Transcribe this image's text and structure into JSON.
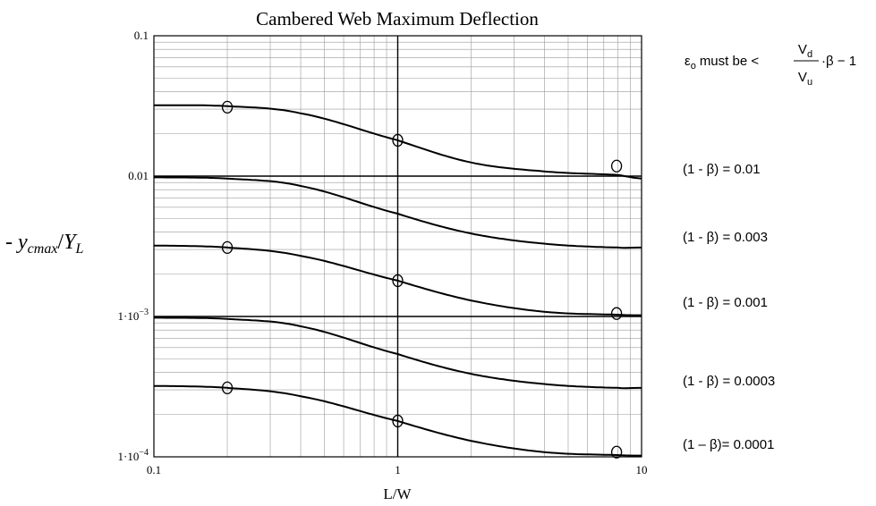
{
  "chart_data": {
    "type": "line",
    "title": "Cambered Web Maximum Deflection",
    "xlabel": "L/W",
    "ylabel": {
      "prefix": "- ",
      "var": "y",
      "var_sub": "cmax",
      "sep": "/",
      "denom": "Y",
      "denom_sub": "L"
    },
    "x_scale": "log",
    "y_scale": "log",
    "xlim": [
      0.1,
      10
    ],
    "ylim": [
      0.0001,
      0.1
    ],
    "x_ticks": [
      {
        "value": 0.1,
        "label": "0.1"
      },
      {
        "value": 1,
        "label": "1"
      },
      {
        "value": 10,
        "label": "10"
      }
    ],
    "y_ticks": [
      {
        "value": 0.1,
        "label": "0.1",
        "base": "",
        "exp": ""
      },
      {
        "value": 0.01,
        "label": "0.01",
        "base": "",
        "exp": ""
      },
      {
        "value": 0.001,
        "label": "",
        "base": "1·10",
        "exp": "−3"
      },
      {
        "value": 0.0001,
        "label": "",
        "base": "1·10",
        "exp": "−4"
      }
    ],
    "grid": true,
    "annotation": {
      "eps": "ε",
      "eps_sub": "o",
      "text": "must be <",
      "num": "V",
      "num_sub": "d",
      "den": "V",
      "den_sub": "u",
      "tail": "·β − 1"
    },
    "series": [
      {
        "label": "(1 - β) = 0.01",
        "x": [
          0.1,
          0.2,
          0.4,
          1,
          2,
          4,
          8,
          10
        ],
        "y": [
          0.032,
          0.0315,
          0.028,
          0.018,
          0.0125,
          0.0108,
          0.0102,
          0.0096
        ]
      },
      {
        "label": "(1 - β) = 0.003",
        "x": [
          0.1,
          0.2,
          0.4,
          1,
          2,
          4,
          8,
          10
        ],
        "y": [
          0.0098,
          0.0096,
          0.0085,
          0.0054,
          0.0039,
          0.0033,
          0.0031,
          0.0031
        ]
      },
      {
        "label": "(1 - β) = 0.001",
        "x": [
          0.1,
          0.2,
          0.4,
          1,
          2,
          4,
          8,
          10
        ],
        "y": [
          0.0032,
          0.0031,
          0.0027,
          0.0018,
          0.0013,
          0.00108,
          0.00103,
          0.00102
        ]
      },
      {
        "label": "(1 - β) = 0.0003",
        "x": [
          0.1,
          0.2,
          0.4,
          1,
          2,
          4,
          8,
          10
        ],
        "y": [
          0.00098,
          0.00096,
          0.00085,
          0.00054,
          0.00039,
          0.00033,
          0.00031,
          0.00031
        ]
      },
      {
        "label": "(1 – β)= 0.0001",
        "x": [
          0.1,
          0.2,
          0.4,
          1,
          2,
          4,
          8,
          10
        ],
        "y": [
          0.00032,
          0.00031,
          0.00027,
          0.00018,
          0.00013,
          0.000108,
          0.000103,
          0.000102
        ]
      }
    ],
    "markers": [
      {
        "x": 0.2,
        "y": 0.031
      },
      {
        "x": 1,
        "y": 0.018
      },
      {
        "x": 7.9,
        "y": 0.0118
      },
      {
        "x": 0.2,
        "y": 0.0031
      },
      {
        "x": 1,
        "y": 0.0018
      },
      {
        "x": 7.9,
        "y": 0.00105
      },
      {
        "x": 0.2,
        "y": 0.00031
      },
      {
        "x": 1,
        "y": 0.00018
      },
      {
        "x": 7.9,
        "y": 0.000108
      }
    ]
  }
}
